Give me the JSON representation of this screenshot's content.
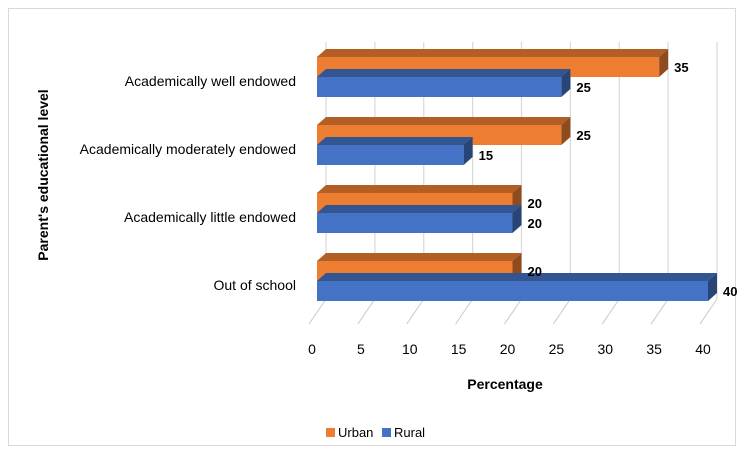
{
  "chart_data": {
    "type": "bar",
    "orientation": "horizontal",
    "style": "3d",
    "categories": [
      "Academically well endowed",
      "Academically moderately endowed",
      "Academically little  endowed",
      "Out of school"
    ],
    "series": [
      {
        "name": "Urban",
        "color": "#ED7D31",
        "values": [
          35,
          25,
          20,
          20
        ]
      },
      {
        "name": "Rural",
        "color": "#4472C4",
        "values": [
          25,
          15,
          20,
          40
        ]
      }
    ],
    "xlabel": "Percentage",
    "ylabel": "Parent's educational level",
    "xlim": [
      0,
      40
    ],
    "xticks": [
      "0",
      "5",
      "10",
      "15",
      "20",
      "25",
      "30",
      "35",
      "40"
    ],
    "grid": true,
    "data_labels": true,
    "legend_position": "bottom"
  }
}
